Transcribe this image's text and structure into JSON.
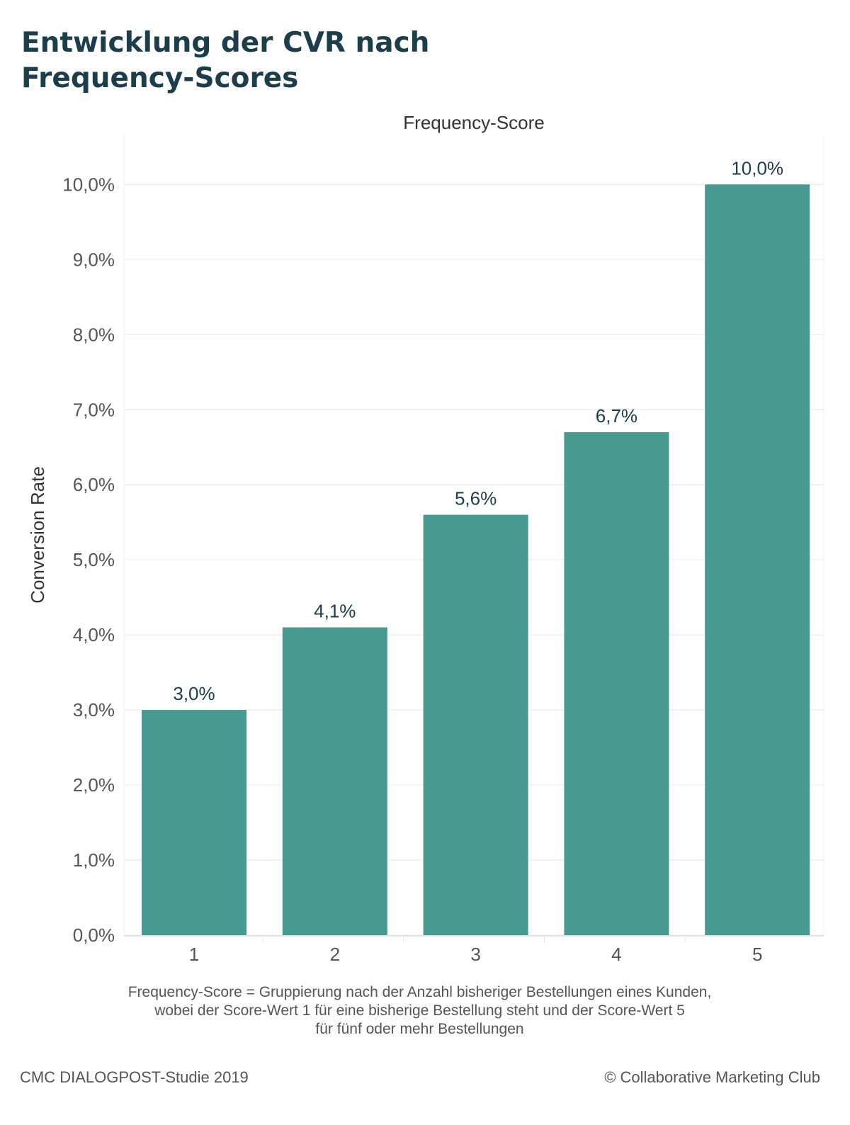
{
  "title_lines": [
    "Entwicklung der CVR nach",
    "Frequency-Scores"
  ],
  "chart_data": {
    "type": "bar",
    "xlabel": "Frequency-Score",
    "ylabel": "Conversion Rate",
    "categories": [
      "1",
      "2",
      "3",
      "4",
      "5"
    ],
    "values": [
      3.0,
      4.1,
      5.6,
      6.7,
      10.0
    ],
    "value_labels": [
      "3,0%",
      "4,1%",
      "5,6%",
      "6,7%",
      "10,0%"
    ],
    "ylim": [
      0,
      10.9
    ],
    "yticks": [
      0,
      1,
      2,
      3,
      4,
      5,
      6,
      7,
      8,
      9,
      10
    ],
    "ytick_labels": [
      "0,0%",
      "1,0%",
      "2,0%",
      "3,0%",
      "4,0%",
      "5,0%",
      "6,0%",
      "7,0%",
      "8,0%",
      "9,0%",
      "10,0%"
    ],
    "grid": true,
    "bar_color": "#469a90"
  },
  "footnote_lines": [
    "Frequency-Score = Gruppierung nach der Anzahl bisheriger Bestellungen eines Kunden,",
    "wobei der Score-Wert 1 für eine bisherige Bestellung steht und der Score-Wert 5",
    "für fünf oder mehr Bestellungen"
  ],
  "footer": {
    "source": "CMC DIALOGPOST-Studie 2019",
    "copyright": "© Collaborative Marketing Club"
  }
}
